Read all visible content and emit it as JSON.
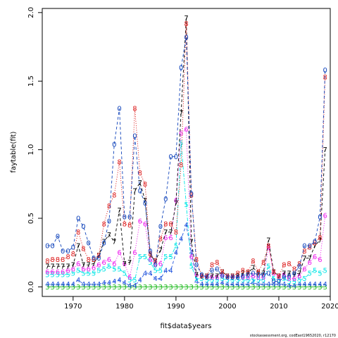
{
  "chart_data": {
    "type": "line",
    "xlabel": "fit$data$years",
    "ylabel": "faytable(fit)",
    "xlim": [
      1964,
      2020
    ],
    "ylim": [
      -0.07,
      2.03
    ],
    "xticks": [
      "1970",
      "1980",
      "1990",
      "2000",
      "2010",
      "2020"
    ],
    "xtick_values": [
      1970,
      1980,
      1990,
      2000,
      2010,
      2020
    ],
    "yticks": [
      "0.0",
      "0.5",
      "1.0",
      "1.5",
      "2.0"
    ],
    "ytick_values": [
      0.0,
      0.5,
      1.0,
      1.5,
      2.0
    ],
    "x": [
      1965,
      1966,
      1967,
      1968,
      1969,
      1970,
      1971,
      1972,
      1973,
      1974,
      1975,
      1976,
      1977,
      1978,
      1979,
      1980,
      1981,
      1982,
      1983,
      1984,
      1985,
      1986,
      1987,
      1988,
      1989,
      1990,
      1991,
      1992,
      1993,
      1994,
      1995,
      1996,
      1997,
      1998,
      1999,
      2000,
      2001,
      2002,
      2003,
      2004,
      2005,
      2006,
      2007,
      2008,
      2009,
      2010,
      2011,
      2012,
      2013,
      2014,
      2015,
      2016,
      2017,
      2018,
      2019
    ],
    "series": [
      {
        "name": "3",
        "color": "#22bb22",
        "line_style": "solid",
        "values": [
          0.0,
          0.0,
          0.0,
          0.0,
          0.0,
          0.0,
          0.0,
          0.0,
          0.0,
          0.0,
          0.0,
          0.0,
          0.0,
          0.0,
          0.0,
          0.0,
          0.0,
          0.0,
          0.0,
          0.0,
          0.0,
          0.0,
          0.0,
          0.0,
          0.0,
          0.0,
          0.0,
          0.0,
          0.0,
          0.0,
          0.0,
          0.0,
          0.0,
          0.0,
          0.0,
          0.0,
          0.0,
          0.0,
          0.0,
          0.0,
          0.0,
          0.0,
          0.0,
          0.0,
          0.0,
          0.0,
          0.0,
          0.0,
          0.0,
          0.0,
          0.0,
          0.0,
          0.0,
          0.0,
          0.0
        ]
      },
      {
        "name": "4",
        "color": "#2255dd",
        "line_style": "dash",
        "values": [
          0.02,
          0.02,
          0.02,
          0.02,
          0.02,
          0.02,
          0.05,
          0.02,
          0.02,
          0.02,
          0.02,
          0.03,
          0.03,
          0.04,
          0.05,
          0.03,
          0.01,
          0.01,
          0.05,
          0.1,
          0.1,
          0.06,
          0.06,
          0.12,
          0.12,
          0.25,
          0.35,
          0.45,
          0.25,
          0.04,
          0.02,
          0.02,
          0.02,
          0.02,
          0.03,
          0.02,
          0.02,
          0.02,
          0.02,
          0.02,
          0.03,
          0.02,
          0.02,
          0.02,
          0.02,
          0.02,
          0.02,
          0.01,
          0.01,
          0.02,
          0.02,
          0.02,
          0.02,
          0.02,
          0.02
        ]
      },
      {
        "name": "5",
        "color": "#00e5e5",
        "line_style": "dotdash",
        "values": [
          0.09,
          0.09,
          0.09,
          0.09,
          0.09,
          0.1,
          0.12,
          0.1,
          0.1,
          0.1,
          0.12,
          0.13,
          0.15,
          0.13,
          0.13,
          0.1,
          0.05,
          0.05,
          0.22,
          0.22,
          0.18,
          0.12,
          0.12,
          0.22,
          0.22,
          0.3,
          1.05,
          0.6,
          0.15,
          0.06,
          0.06,
          0.05,
          0.05,
          0.05,
          0.06,
          0.05,
          0.05,
          0.05,
          0.05,
          0.05,
          0.05,
          0.05,
          0.05,
          0.15,
          0.06,
          0.05,
          0.06,
          0.04,
          0.04,
          0.05,
          0.06,
          0.1,
          0.12,
          0.1,
          0.12
        ]
      },
      {
        "name": "6",
        "color": "#ee22ee",
        "line_style": "dotted",
        "values": [
          0.11,
          0.11,
          0.11,
          0.11,
          0.12,
          0.13,
          0.17,
          0.13,
          0.13,
          0.14,
          0.16,
          0.18,
          0.2,
          0.17,
          0.25,
          0.17,
          0.07,
          0.25,
          0.48,
          0.46,
          0.2,
          0.17,
          0.17,
          0.36,
          0.36,
          0.63,
          1.12,
          1.15,
          0.22,
          0.09,
          0.08,
          0.07,
          0.07,
          0.07,
          0.09,
          0.07,
          0.07,
          0.07,
          0.07,
          0.07,
          0.08,
          0.07,
          0.07,
          0.29,
          0.1,
          0.07,
          0.09,
          0.06,
          0.06,
          0.08,
          0.13,
          0.18,
          0.22,
          0.2,
          0.52
        ]
      },
      {
        "name": "7",
        "color": "#000000",
        "line_style": "dash",
        "values": [
          0.15,
          0.15,
          0.15,
          0.15,
          0.15,
          0.16,
          0.3,
          0.16,
          0.16,
          0.17,
          0.23,
          0.33,
          0.38,
          0.33,
          0.56,
          0.17,
          0.18,
          0.7,
          0.76,
          0.63,
          0.23,
          0.19,
          0.27,
          0.4,
          0.4,
          0.61,
          1.27,
          1.96,
          0.33,
          0.09,
          0.08,
          0.08,
          0.08,
          0.08,
          0.11,
          0.08,
          0.08,
          0.08,
          0.1,
          0.1,
          0.14,
          0.1,
          0.1,
          0.34,
          0.11,
          0.08,
          0.1,
          0.1,
          0.09,
          0.1,
          0.21,
          0.21,
          0.3,
          0.34,
          1.0
        ]
      },
      {
        "name": "8",
        "color": "#dd2222",
        "line_style": "dotted",
        "values": [
          0.19,
          0.2,
          0.2,
          0.2,
          0.22,
          0.24,
          0.4,
          0.28,
          0.2,
          0.2,
          0.23,
          0.46,
          0.59,
          0.67,
          0.91,
          0.46,
          0.45,
          1.3,
          0.83,
          0.75,
          0.24,
          0.19,
          0.35,
          0.46,
          0.46,
          0.4,
          0.89,
          1.92,
          0.67,
          0.2,
          0.08,
          0.08,
          0.16,
          0.18,
          0.11,
          0.08,
          0.08,
          0.1,
          0.12,
          0.11,
          0.19,
          0.11,
          0.18,
          0.3,
          0.11,
          0.08,
          0.16,
          0.17,
          0.13,
          0.17,
          0.26,
          0.29,
          0.32,
          0.36,
          1.53
        ]
      },
      {
        "name": "0",
        "color": "#1144bb",
        "line_style": "dash",
        "values": [
          0.3,
          0.3,
          0.37,
          0.26,
          0.26,
          0.29,
          0.5,
          0.44,
          0.32,
          0.21,
          0.21,
          0.32,
          0.48,
          1.04,
          1.3,
          0.51,
          0.51,
          1.1,
          0.7,
          0.61,
          0.26,
          0.16,
          0.44,
          0.64,
          0.95,
          0.95,
          1.6,
          1.82,
          0.68,
          0.16,
          0.09,
          0.07,
          0.12,
          0.13,
          0.08,
          0.07,
          0.07,
          0.07,
          0.08,
          0.09,
          0.1,
          0.09,
          0.09,
          0.1,
          0.04,
          0.04,
          0.07,
          0.08,
          0.1,
          0.15,
          0.3,
          0.3,
          0.33,
          0.51,
          1.58
        ]
      }
    ]
  },
  "footnote": "stockassessment.org, codEast19652020, r12170"
}
